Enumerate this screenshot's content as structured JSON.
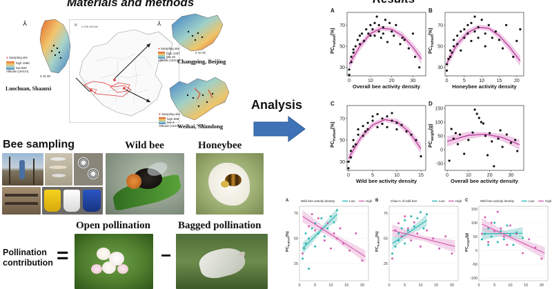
{
  "materials": {
    "title": "Materials and methods",
    "sites": [
      {
        "name": "Luochuan, Shaanxi",
        "legend_title": "Sampling site",
        "high_label": "high",
        "high_value": "1580",
        "low_label": "low",
        "low_value": "683",
        "alt_label": "Altitude (Unit:m)"
      },
      {
        "name": "Changping, Beijing",
        "legend_title": "Sampling site",
        "high_label": "high",
        "high_value": "1487",
        "low_label": "low",
        "low_value": "26",
        "alt_label": "Altitude (Unit:m)"
      },
      {
        "name": "Weihai, Shandong",
        "legend_title": "Sampling site",
        "high_label": "high",
        "high_value": "898",
        "low_label": "low",
        "low_value": "3",
        "alt_label": "Altitude (Unit:m)"
      }
    ],
    "scale_small": "0 245 490 km",
    "scale_a": "0 15 30",
    "scale_b": "0 10 20",
    "scale_c": "0 5 10",
    "bee_sampling": "Bee sampling",
    "wild_bee": "Wild bee",
    "honeybee": "Honeybee",
    "open_pollination": "Open pollination",
    "bagged_pollination": "Bagged pollination",
    "pollination_contribution": [
      "Pollination",
      "contribution"
    ],
    "equals": "=",
    "minus": "−"
  },
  "analysis": {
    "label": "Analysis"
  },
  "results": {
    "title": "Results"
  },
  "chart_data": [
    {
      "type": "scatter",
      "panel": "A",
      "ylabel_main": "PC",
      "ylabel_sub": "fruitset",
      "ylabel_unit": "(%)",
      "xlabel": "Overall bee activity density",
      "xlim": [
        -1,
        36
      ],
      "ylim": [
        22,
        82
      ],
      "xticks": [
        0,
        10,
        20,
        30
      ],
      "yticks": [
        30,
        50,
        70
      ],
      "points": [
        [
          0,
          23
        ],
        [
          0,
          28
        ],
        [
          1,
          35
        ],
        [
          1,
          40
        ],
        [
          2,
          44
        ],
        [
          2,
          47
        ],
        [
          3,
          50
        ],
        [
          4,
          56
        ],
        [
          5,
          52
        ],
        [
          5,
          60
        ],
        [
          6,
          62
        ],
        [
          7,
          55
        ],
        [
          8,
          66
        ],
        [
          9,
          62
        ],
        [
          10,
          60
        ],
        [
          10,
          70
        ],
        [
          11,
          66
        ],
        [
          12,
          72
        ],
        [
          12,
          60
        ],
        [
          13,
          78
        ],
        [
          14,
          64
        ],
        [
          14,
          70
        ],
        [
          15,
          58
        ],
        [
          16,
          62
        ],
        [
          16,
          68
        ],
        [
          17,
          75
        ],
        [
          18,
          54
        ],
        [
          19,
          72
        ],
        [
          20,
          64
        ],
        [
          21,
          60
        ],
        [
          22,
          70
        ],
        [
          24,
          52
        ],
        [
          25,
          58
        ],
        [
          26,
          56
        ],
        [
          28,
          48
        ],
        [
          30,
          62
        ],
        [
          31,
          40
        ],
        [
          33,
          30
        ]
      ],
      "fit": [
        [
          0,
          33
        ],
        [
          5,
          50
        ],
        [
          10,
          62
        ],
        [
          15,
          67
        ],
        [
          20,
          66
        ],
        [
          25,
          60
        ],
        [
          30,
          49
        ],
        [
          34,
          38
        ]
      ]
    },
    {
      "type": "scatter",
      "panel": "B",
      "ylabel_main": "PC",
      "ylabel_sub": "fruitset",
      "ylabel_unit": "(%)",
      "xlabel": "Honeybee activity density",
      "xlim": [
        -0.5,
        22
      ],
      "ylim": [
        22,
        82
      ],
      "xticks": [
        0,
        5,
        10,
        15,
        20
      ],
      "yticks": [
        30,
        50,
        70
      ],
      "points": [
        [
          0,
          27
        ],
        [
          0,
          33
        ],
        [
          0.5,
          38
        ],
        [
          1,
          40
        ],
        [
          1,
          46
        ],
        [
          1.5,
          44
        ],
        [
          2,
          50
        ],
        [
          2,
          56
        ],
        [
          3,
          52
        ],
        [
          3,
          60
        ],
        [
          4,
          64
        ],
        [
          4,
          46
        ],
        [
          5,
          66
        ],
        [
          5,
          58
        ],
        [
          6,
          62
        ],
        [
          6,
          70
        ],
        [
          7,
          55
        ],
        [
          7,
          72
        ],
        [
          8,
          78
        ],
        [
          8,
          64
        ],
        [
          9,
          68
        ],
        [
          9,
          58
        ],
        [
          10,
          75
        ],
        [
          11,
          62
        ],
        [
          11,
          50
        ],
        [
          12,
          70
        ],
        [
          13,
          58
        ],
        [
          14,
          64
        ],
        [
          15,
          56
        ],
        [
          16,
          48
        ],
        [
          17,
          70
        ],
        [
          19,
          40
        ],
        [
          20,
          55
        ],
        [
          21,
          66
        ]
      ],
      "fit": [
        [
          0,
          34
        ],
        [
          3,
          52
        ],
        [
          6,
          63
        ],
        [
          9,
          68
        ],
        [
          12,
          67
        ],
        [
          15,
          60
        ],
        [
          18,
          49
        ],
        [
          21,
          36
        ]
      ]
    },
    {
      "type": "scatter",
      "panel": "C",
      "ylabel_main": "PC",
      "ylabel_sub": "fruitset",
      "ylabel_unit": "(%)",
      "xlabel": "Wild bee activity density",
      "xlim": [
        -0.3,
        16
      ],
      "ylim": [
        22,
        82
      ],
      "xticks": [
        0,
        5,
        10,
        15
      ],
      "yticks": [
        30,
        50,
        70
      ],
      "points": [
        [
          0,
          24
        ],
        [
          0,
          30
        ],
        [
          0.5,
          34
        ],
        [
          0.5,
          40
        ],
        [
          1,
          44
        ],
        [
          1,
          50
        ],
        [
          1.5,
          46
        ],
        [
          2,
          55
        ],
        [
          2,
          60
        ],
        [
          3,
          54
        ],
        [
          3,
          63
        ],
        [
          3.5,
          58
        ],
        [
          4,
          66
        ],
        [
          4,
          60
        ],
        [
          5,
          68
        ],
        [
          5,
          72
        ],
        [
          6,
          62
        ],
        [
          6,
          74
        ],
        [
          7,
          70
        ],
        [
          7,
          65
        ],
        [
          8,
          72
        ],
        [
          8,
          62
        ],
        [
          9,
          68
        ],
        [
          9,
          75
        ],
        [
          10,
          66
        ],
        [
          10,
          60
        ],
        [
          11,
          64
        ],
        [
          12,
          58
        ],
        [
          13,
          55
        ],
        [
          14,
          50
        ],
        [
          15,
          35
        ]
      ],
      "fit": [
        [
          0,
          33
        ],
        [
          2.5,
          52
        ],
        [
          5,
          64
        ],
        [
          7.5,
          69
        ],
        [
          10,
          67
        ],
        [
          12.5,
          58
        ],
        [
          15,
          42
        ]
      ]
    },
    {
      "type": "scatter",
      "panel": "D",
      "ylabel_main": "PC",
      "ylabel_sub": "weight",
      "ylabel_unit": "(g)",
      "xlabel": "Overall bee activity density",
      "xlim": [
        -1,
        36
      ],
      "ylim": [
        -75,
        160
      ],
      "xticks": [
        0,
        10,
        20,
        30
      ],
      "yticks": [
        -50,
        0,
        50,
        100,
        150
      ],
      "points": [
        [
          1,
          -40
        ],
        [
          2,
          75
        ],
        [
          3,
          40
        ],
        [
          4,
          60
        ],
        [
          5,
          20
        ],
        [
          6,
          55
        ],
        [
          8,
          -15
        ],
        [
          10,
          35
        ],
        [
          12,
          62
        ],
        [
          13,
          145
        ],
        [
          14,
          130
        ],
        [
          15,
          115
        ],
        [
          16,
          100
        ],
        [
          17,
          95
        ],
        [
          18,
          50
        ],
        [
          19,
          -20
        ],
        [
          20,
          60
        ],
        [
          21,
          30
        ],
        [
          22,
          -60
        ],
        [
          24,
          40
        ],
        [
          25,
          70
        ],
        [
          26,
          10
        ],
        [
          28,
          55
        ],
        [
          30,
          25
        ],
        [
          32,
          35
        ],
        [
          33,
          -5
        ]
      ],
      "fit": [
        [
          0,
          30
        ],
        [
          10,
          52
        ],
        [
          18,
          56
        ],
        [
          26,
          44
        ],
        [
          34,
          18
        ]
      ]
    },
    {
      "type": "scatter",
      "panel": "A",
      "legend_title": "Wild bee activity density",
      "legend_labels": [
        "Low",
        "High"
      ],
      "ylabel_main": "PC",
      "ylabel_sub": "fruitset",
      "ylabel_unit": "(%)",
      "xlim": [
        0,
        22
      ],
      "ylim": [
        8,
        82
      ],
      "xticks": [
        0,
        5,
        10,
        15,
        20
      ],
      "yticks": [
        25,
        50,
        75
      ],
      "series": [
        {
          "name": "Low",
          "color": "#2ab7b3",
          "points": [
            [
              1,
              30
            ],
            [
              1.5,
              40
            ],
            [
              2,
              45
            ],
            [
              2,
              55
            ],
            [
              3,
              20
            ],
            [
              3,
              50
            ],
            [
              4,
              60
            ],
            [
              5,
              42
            ],
            [
              5,
              65
            ],
            [
              6,
              55
            ],
            [
              7,
              70
            ],
            [
              8,
              52
            ],
            [
              9,
              60
            ],
            [
              10,
              72
            ],
            [
              11,
              66
            ],
            [
              12,
              78
            ]
          ],
          "fit": [
            [
              1,
              40
            ],
            [
              12,
              74
            ]
          ]
        },
        {
          "name": "High",
          "color": "#d45db0",
          "points": [
            [
              1,
              35
            ],
            [
              3,
              62
            ],
            [
              4,
              74
            ],
            [
              5,
              58
            ],
            [
              6,
              70
            ],
            [
              7,
              60
            ],
            [
              8,
              48
            ],
            [
              9,
              65
            ],
            [
              10,
              40
            ],
            [
              11,
              55
            ],
            [
              12,
              50
            ],
            [
              13,
              60
            ],
            [
              14,
              45
            ],
            [
              16,
              38
            ],
            [
              18,
              55
            ],
            [
              20,
              28
            ]
          ],
          "fit": [
            [
              1,
              72
            ],
            [
              21,
              32
            ]
          ]
        }
      ]
    },
    {
      "type": "scatter",
      "panel": "B",
      "legend_title": "Chao-1 of wild bee",
      "legend_labels": [
        "Low",
        "High"
      ],
      "ylabel_main": "PC",
      "ylabel_sub": "fruitset",
      "ylabel_unit": "(%)",
      "xlim": [
        0,
        22
      ],
      "ylim": [
        8,
        82
      ],
      "xticks": [
        0,
        5,
        10,
        15,
        20
      ],
      "yticks": [
        25,
        50,
        75
      ],
      "series": [
        {
          "name": "Low",
          "color": "#2ab7b3",
          "points": [
            [
              1,
              35
            ],
            [
              2,
              42
            ],
            [
              3,
              48
            ],
            [
              3,
              55
            ],
            [
              4,
              60
            ],
            [
              5,
              45
            ],
            [
              5,
              68
            ],
            [
              6,
              58
            ],
            [
              7,
              72
            ],
            [
              8,
              62
            ],
            [
              9,
              70
            ],
            [
              10,
              76
            ],
            [
              11,
              60
            ],
            [
              12,
              74
            ]
          ],
          "fit": [
            [
              1,
              45
            ],
            [
              12,
              68
            ]
          ]
        },
        {
          "name": "High",
          "color": "#d45db0",
          "points": [
            [
              1,
              30
            ],
            [
              2,
              58
            ],
            [
              3,
              65
            ],
            [
              4,
              52
            ],
            [
              5,
              72
            ],
            [
              6,
              60
            ],
            [
              7,
              48
            ],
            [
              8,
              66
            ],
            [
              9,
              55
            ],
            [
              10,
              42
            ],
            [
              12,
              58
            ],
            [
              14,
              50
            ],
            [
              16,
              40
            ],
            [
              18,
              52
            ],
            [
              20,
              35
            ]
          ],
          "fit": [
            [
              1,
              58
            ],
            [
              21,
              42
            ]
          ]
        }
      ]
    },
    {
      "type": "scatter",
      "panel": "C",
      "legend_title": "Wild bee activity density",
      "legend_labels": [
        "Low",
        "High"
      ],
      "ylabel_main": "PC",
      "ylabel_sub": "weight",
      "ylabel_unit": "(g)",
      "xlim": [
        0,
        22
      ],
      "ylim": [
        -110,
        160
      ],
      "xticks": [
        0,
        5,
        10,
        15,
        20
      ],
      "yticks": [
        -100,
        -50,
        0,
        50,
        100,
        150
      ],
      "series": [
        {
          "name": "Low",
          "color": "#2ab7b3",
          "points": [
            [
              1,
              40
            ],
            [
              2,
              60
            ],
            [
              3,
              20
            ],
            [
              3,
              80
            ],
            [
              4,
              50
            ],
            [
              5,
              100
            ],
            [
              6,
              30
            ],
            [
              7,
              70
            ],
            [
              8,
              40
            ],
            [
              9,
              90
            ],
            [
              10,
              55
            ],
            [
              11,
              20
            ],
            [
              12,
              65
            ],
            [
              14,
              45
            ]
          ],
          "fit": [
            [
              1,
              60
            ],
            [
              14,
              62
            ]
          ]
        },
        {
          "name": "High",
          "color": "#d45db0",
          "points": [
            [
              1,
              60
            ],
            [
              2,
              120
            ],
            [
              3,
              30
            ],
            [
              4,
              100
            ],
            [
              5,
              70
            ],
            [
              6,
              140
            ],
            [
              7,
              80
            ],
            [
              8,
              50
            ],
            [
              9,
              20
            ],
            [
              10,
              90
            ],
            [
              12,
              60
            ],
            [
              14,
              -10
            ],
            [
              16,
              40
            ],
            [
              18,
              10
            ],
            [
              20,
              -30
            ]
          ],
          "fit": [
            [
              1,
              95
            ],
            [
              21,
              -10
            ]
          ]
        }
      ]
    }
  ]
}
